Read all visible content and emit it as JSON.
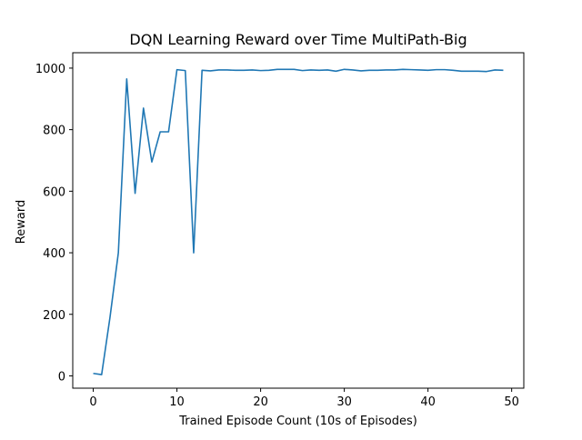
{
  "chart_data": {
    "type": "line",
    "title": "DQN Learning Reward over Time MultiPath-Big",
    "xlabel": "Trained Episode Count (10s of Episodes)",
    "ylabel": "Reward",
    "xlim": [
      -2.45,
      51.45
    ],
    "ylim": [
      -40,
      1050
    ],
    "xticks": [
      0,
      10,
      20,
      30,
      40,
      50
    ],
    "yticks": [
      0,
      200,
      400,
      600,
      800,
      1000
    ],
    "grid": false,
    "series": [
      {
        "color": "#1f77b4",
        "x": [
          0,
          1,
          2,
          3,
          4,
          5,
          6,
          7,
          8,
          9,
          10,
          11,
          12,
          13,
          14,
          15,
          16,
          17,
          18,
          19,
          20,
          21,
          22,
          23,
          24,
          25,
          26,
          27,
          28,
          29,
          30,
          31,
          32,
          33,
          34,
          35,
          36,
          37,
          38,
          39,
          40,
          41,
          42,
          43,
          44,
          45,
          46,
          47,
          48,
          49
        ],
        "y": [
          8,
          4,
          190,
          400,
          965,
          593,
          870,
          695,
          793,
          793,
          995,
          992,
          400,
          993,
          991,
          994,
          994,
          993,
          993,
          994,
          992,
          993,
          996,
          996,
          996,
          992,
          994,
          993,
          994,
          990,
          996,
          994,
          991,
          993,
          993,
          994,
          994,
          996,
          995,
          994,
          993,
          995,
          995,
          993,
          990,
          990,
          990,
          989,
          994,
          993
        ]
      }
    ]
  }
}
